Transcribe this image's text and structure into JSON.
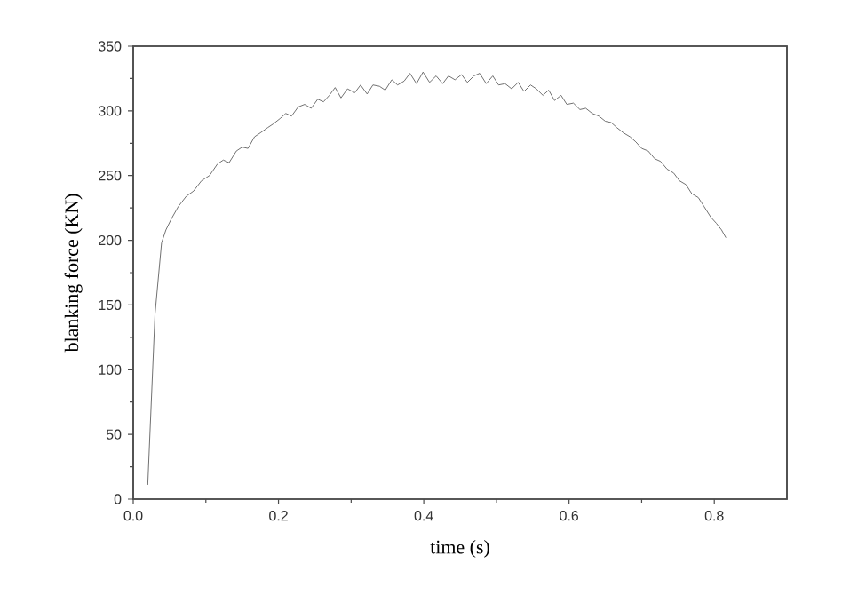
{
  "chart_data": {
    "type": "line",
    "xlabel": "time (s)",
    "ylabel": "blanking force (KN)",
    "xlim": [
      0,
      0.9
    ],
    "xticks": [
      {
        "value": 0,
        "label": "0.0"
      },
      0.2,
      0.4,
      0.6,
      0.8
    ],
    "ylim": [
      0,
      350
    ],
    "yticks": [
      0,
      50,
      100,
      150,
      200,
      250,
      300,
      350
    ],
    "marker": "none",
    "line_style": "solid",
    "series": [
      {
        "color": "#707070",
        "x": [
          0.02,
          0.03,
          0.039,
          0.045,
          0.052,
          0.062,
          0.073,
          0.083,
          0.094,
          0.105,
          0.116,
          0.124,
          0.132,
          0.142,
          0.15,
          0.158,
          0.167,
          0.175,
          0.185,
          0.193,
          0.202,
          0.21,
          0.218,
          0.227,
          0.236,
          0.245,
          0.254,
          0.262,
          0.27,
          0.278,
          0.286,
          0.295,
          0.305,
          0.313,
          0.322,
          0.33,
          0.339,
          0.347,
          0.356,
          0.364,
          0.373,
          0.381,
          0.39,
          0.399,
          0.408,
          0.417,
          0.426,
          0.434,
          0.443,
          0.452,
          0.46,
          0.469,
          0.477,
          0.486,
          0.495,
          0.503,
          0.512,
          0.521,
          0.53,
          0.538,
          0.547,
          0.555,
          0.564,
          0.572,
          0.58,
          0.589,
          0.597,
          0.606,
          0.615,
          0.623,
          0.632,
          0.641,
          0.65,
          0.658,
          0.666,
          0.675,
          0.684,
          0.692,
          0.7,
          0.709,
          0.718,
          0.726,
          0.735,
          0.744,
          0.752,
          0.761,
          0.769,
          0.778,
          0.786,
          0.795,
          0.803,
          0.81,
          0.816
        ],
        "values": [
          11,
          143,
          198,
          208,
          216,
          226,
          234,
          238,
          246,
          250,
          259,
          262,
          260,
          269,
          272,
          271,
          280,
          283,
          287,
          290,
          294,
          298,
          296,
          303,
          305,
          302,
          309,
          307,
          312,
          318,
          310,
          317,
          314,
          320,
          313,
          320,
          319,
          316,
          324,
          320,
          323,
          329,
          321,
          330,
          322,
          327,
          321,
          327,
          324,
          328,
          322,
          327,
          329,
          321,
          327,
          320,
          321,
          317,
          322,
          315,
          320,
          317,
          312,
          316,
          308,
          312,
          305,
          306,
          301,
          302,
          298,
          296,
          292,
          291,
          287,
          283,
          280,
          276,
          271,
          269,
          263,
          261,
          255,
          252,
          246,
          243,
          236,
          233,
          226,
          218,
          213,
          208,
          202
        ]
      }
    ]
  }
}
